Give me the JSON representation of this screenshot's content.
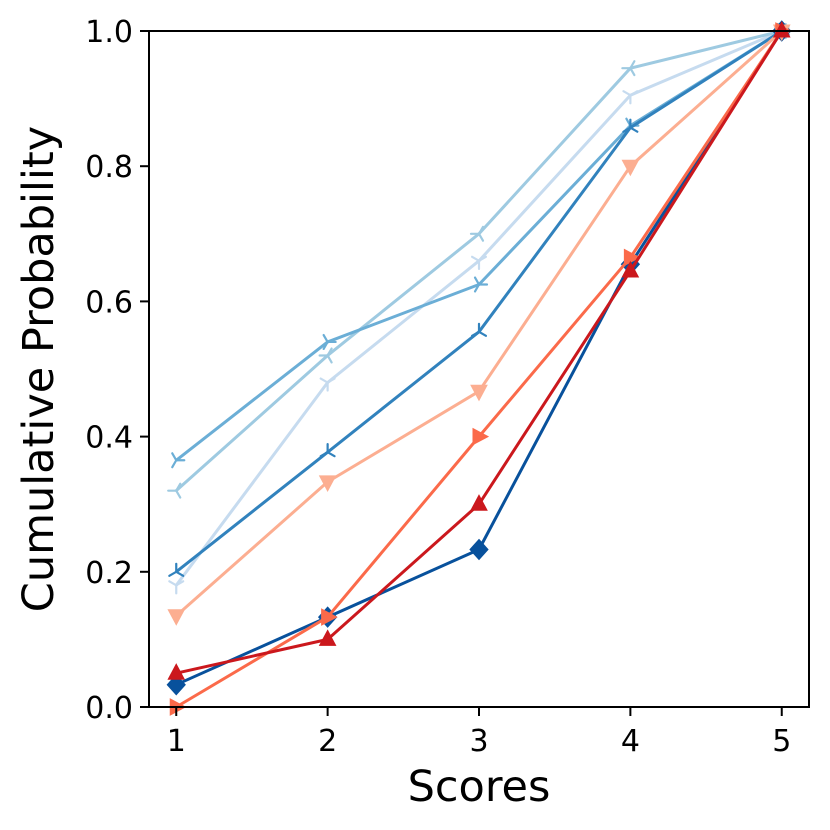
{
  "chart_data": {
    "type": "line",
    "xlabel": "Scores",
    "ylabel": "Cumulative Probability",
    "x": [
      1,
      2,
      3,
      4,
      5
    ],
    "xlim": [
      0.82,
      5.18
    ],
    "ylim": [
      0.0,
      1.0
    ],
    "xticks": [
      "1",
      "2",
      "3",
      "4",
      "5"
    ],
    "yticks": [
      "0.0",
      "0.2",
      "0.4",
      "0.6",
      "0.8",
      "1.0"
    ],
    "grid": false,
    "legend": "none",
    "series": [
      {
        "color": "#c6dbef",
        "marker": "tri_down",
        "values": [
          0.18,
          0.48,
          0.66,
          0.905,
          1.0
        ]
      },
      {
        "color": "#9ecae1",
        "marker": "tri_left",
        "values": [
          0.32,
          0.52,
          0.7,
          0.945,
          1.0
        ]
      },
      {
        "color": "#6baed6",
        "marker": "tri_right",
        "values": [
          0.365,
          0.54,
          0.625,
          0.86,
          1.0
        ]
      },
      {
        "color": "#3182bd",
        "marker": "tri_up",
        "values": [
          0.2,
          0.377,
          0.555,
          0.857,
          1.0
        ]
      },
      {
        "color": "#08519c",
        "marker": "diamond",
        "values": [
          0.033,
          0.133,
          0.233,
          0.655,
          1.0
        ]
      },
      {
        "color": "#fcae91",
        "marker": "triangle_down",
        "values": [
          0.135,
          0.333,
          0.467,
          0.8,
          1.0
        ]
      },
      {
        "color": "#fb6a4a",
        "marker": "triangle_right",
        "values": [
          0.0,
          0.133,
          0.4,
          0.665,
          1.0
        ]
      },
      {
        "color": "#cb181d",
        "marker": "triangle_up",
        "values": [
          0.05,
          0.1,
          0.3,
          0.645,
          1.0
        ]
      }
    ]
  }
}
